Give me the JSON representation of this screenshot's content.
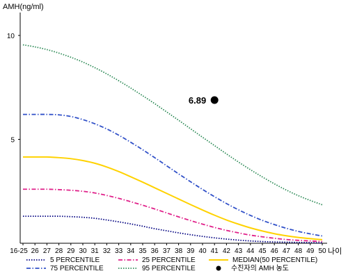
{
  "chart_data": {
    "type": "line",
    "ylabel": "AMH(ng/ml)",
    "xlabel": "나이",
    "ylim": [
      0,
      11
    ],
    "yticks": [
      5,
      10
    ],
    "categories": [
      "16-25",
      "26",
      "27",
      "28",
      "29",
      "30",
      "31",
      "32",
      "33",
      "34",
      "35",
      "36",
      "37",
      "38",
      "39",
      "40",
      "41",
      "42",
      "43",
      "44",
      "45",
      "46",
      "47",
      "48",
      "49",
      "50"
    ],
    "series": [
      {
        "name": "5 PERCENTILE",
        "color": "#000080",
        "style": "dotted",
        "values": [
          1.3,
          1.3,
          1.3,
          1.3,
          1.28,
          1.25,
          1.2,
          1.12,
          1.03,
          0.93,
          0.82,
          0.7,
          0.6,
          0.5,
          0.41,
          0.33,
          0.26,
          0.2,
          0.15,
          0.11,
          0.08,
          0.06,
          0.05,
          0.04,
          0.03,
          0.02
        ]
      },
      {
        "name": "25 PERCENTILE",
        "color": "#e0218a",
        "style": "dashdot",
        "values": [
          2.6,
          2.6,
          2.6,
          2.58,
          2.55,
          2.5,
          2.42,
          2.3,
          2.16,
          2.0,
          1.83,
          1.65,
          1.46,
          1.27,
          1.09,
          0.92,
          0.76,
          0.62,
          0.5,
          0.39,
          0.31,
          0.24,
          0.18,
          0.14,
          0.11,
          0.08
        ]
      },
      {
        "name": "MEDIAN(50 PERCENTILE)",
        "color": "#ffd200",
        "style": "solid",
        "values": [
          4.15,
          4.15,
          4.15,
          4.12,
          4.07,
          3.98,
          3.85,
          3.67,
          3.45,
          3.2,
          2.94,
          2.67,
          2.4,
          2.13,
          1.86,
          1.6,
          1.35,
          1.12,
          0.92,
          0.74,
          0.59,
          0.46,
          0.36,
          0.28,
          0.22,
          0.17
        ]
      },
      {
        "name": "75 PERCENTILE",
        "color": "#3050c8",
        "style": "dashdot",
        "values": [
          6.2,
          6.2,
          6.2,
          6.18,
          6.1,
          5.95,
          5.75,
          5.5,
          5.2,
          4.86,
          4.5,
          4.12,
          3.73,
          3.34,
          2.96,
          2.59,
          2.24,
          1.91,
          1.61,
          1.34,
          1.1,
          0.9,
          0.72,
          0.57,
          0.45,
          0.35
        ]
      },
      {
        "name": "95 PERCENTILE",
        "color": "#2e8b57",
        "style": "dotted",
        "values": [
          9.55,
          9.45,
          9.32,
          9.15,
          8.95,
          8.72,
          8.45,
          8.15,
          7.82,
          7.47,
          7.1,
          6.72,
          6.32,
          5.92,
          5.51,
          5.1,
          4.7,
          4.3,
          3.91,
          3.54,
          3.19,
          2.86,
          2.56,
          2.29,
          2.06,
          1.85
        ]
      }
    ],
    "marker": {
      "name": "수진자의 AMH 농도",
      "x": "41",
      "y": 6.89,
      "label": "6.89",
      "color": "#000000"
    },
    "legend_position": "bottom"
  }
}
